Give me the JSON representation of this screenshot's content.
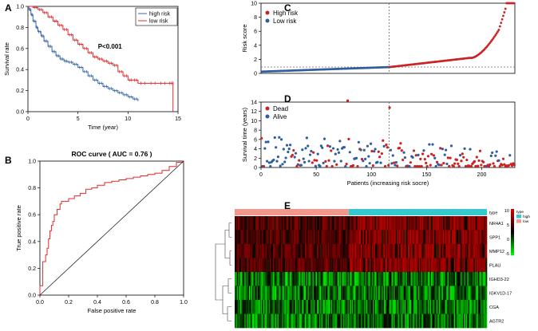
{
  "panel_letters": [
    "A",
    "B",
    "C",
    "D",
    "E"
  ],
  "chart_data": [
    {
      "panel": "A",
      "type": "line",
      "title": "",
      "xlabel": "Time (year)",
      "ylabel": "Survival rate",
      "xlim": [
        0,
        15
      ],
      "ylim": [
        0,
        1
      ],
      "xticks": [
        0,
        5,
        10,
        15
      ],
      "yticks": [
        0.0,
        0.2,
        0.4,
        0.6,
        0.8,
        1.0
      ],
      "annotation": "P<0.001",
      "series": [
        {
          "name": "high risk",
          "color": "#3a67a8",
          "x": [
            0,
            0.1,
            0.3,
            0.5,
            0.8,
            1.0,
            1.3,
            1.6,
            2.0,
            2.4,
            2.8,
            3.2,
            3.6,
            4.0,
            4.5,
            5.0,
            5.5,
            6.0,
            6.5,
            7.0,
            7.5,
            8.0,
            8.5,
            9.0,
            9.5,
            10.0,
            10.5,
            11.0
          ],
          "y": [
            1.0,
            0.97,
            0.92,
            0.86,
            0.8,
            0.76,
            0.72,
            0.67,
            0.62,
            0.57,
            0.53,
            0.5,
            0.48,
            0.47,
            0.45,
            0.42,
            0.38,
            0.34,
            0.3,
            0.27,
            0.24,
            0.22,
            0.2,
            0.18,
            0.16,
            0.14,
            0.12,
            0.1
          ]
        },
        {
          "name": "low risk",
          "color": "#e02a2a",
          "x": [
            0,
            0.5,
            1.0,
            1.5,
            2.0,
            2.5,
            3.0,
            3.5,
            4.0,
            4.5,
            5.0,
            5.5,
            6.0,
            6.5,
            7.0,
            7.5,
            8.0,
            8.5,
            9.0,
            9.5,
            10.0,
            10.5,
            11.0,
            12.0,
            13.0,
            14.0,
            14.5,
            14.5
          ],
          "y": [
            1.0,
            0.99,
            0.97,
            0.94,
            0.9,
            0.86,
            0.82,
            0.78,
            0.73,
            0.68,
            0.64,
            0.6,
            0.56,
            0.52,
            0.5,
            0.48,
            0.46,
            0.44,
            0.38,
            0.34,
            0.3,
            0.3,
            0.27,
            0.27,
            0.27,
            0.27,
            0.27,
            0.0
          ]
        }
      ],
      "legend": [
        "high risk",
        "low risk"
      ],
      "legend_position": "top-right"
    },
    {
      "panel": "B",
      "type": "line",
      "title": "ROC curve ( AUC =  0.76 )",
      "xlabel": "False positive rate",
      "ylabel": "True positive rate",
      "xlim": [
        0,
        1
      ],
      "ylim": [
        0,
        1
      ],
      "xticks": [
        0.0,
        0.2,
        0.4,
        0.6,
        0.8,
        1.0
      ],
      "yticks": [
        0.0,
        0.2,
        0.4,
        0.6,
        0.8,
        1.0
      ],
      "series": [
        {
          "name": "ROC",
          "color": "#e02a2a",
          "x": [
            0,
            0,
            0.02,
            0.02,
            0.04,
            0.05,
            0.06,
            0.07,
            0.08,
            0.09,
            0.1,
            0.12,
            0.14,
            0.15,
            0.18,
            0.2,
            0.24,
            0.28,
            0.32,
            0.36,
            0.4,
            0.45,
            0.5,
            0.55,
            0.6,
            0.65,
            0.7,
            0.75,
            0.8,
            0.85,
            0.9,
            0.95,
            1.0
          ],
          "y": [
            0,
            0.07,
            0.07,
            0.25,
            0.3,
            0.35,
            0.42,
            0.48,
            0.52,
            0.55,
            0.6,
            0.64,
            0.68,
            0.7,
            0.7,
            0.72,
            0.74,
            0.76,
            0.79,
            0.8,
            0.82,
            0.84,
            0.85,
            0.86,
            0.87,
            0.88,
            0.89,
            0.9,
            0.91,
            0.93,
            0.96,
            0.99,
            1.0
          ]
        },
        {
          "name": "reference",
          "color": "#222222",
          "x": [
            0,
            1
          ],
          "y": [
            0,
            1
          ]
        }
      ]
    },
    {
      "panel": "C",
      "type": "scatter",
      "ylabel": "Risk score",
      "xlim": [
        0,
        230
      ],
      "ylim": [
        0,
        10
      ],
      "yticks": [
        0,
        2,
        4,
        6,
        8,
        10
      ],
      "cutoff_index": 116,
      "cutoff_score": 0.9,
      "n_patients": 230,
      "legend": [
        "High risk",
        "Low risk"
      ],
      "series_colors": {
        "High risk": "#cc2222",
        "Low risk": "#2f5e9e"
      }
    },
    {
      "panel": "D",
      "type": "scatter",
      "xlabel": "Patients (increasing risk socre)",
      "ylabel": "Survival time (years)",
      "xlim": [
        0,
        230
      ],
      "ylim": [
        0,
        14
      ],
      "xticks": [
        0,
        50,
        100,
        150,
        200
      ],
      "yticks": [
        0,
        2,
        4,
        6,
        8,
        10,
        12,
        14
      ],
      "cutoff_index": 116,
      "legend": [
        "Dead",
        "Alive"
      ],
      "series_colors": {
        "Dead": "#cc2222",
        "Alive": "#2f5e9e"
      }
    },
    {
      "panel": "E",
      "type": "heatmap",
      "rows": [
        "NR4A1",
        "SPP1",
        "MMP12",
        "PLAU",
        "IGHD3-22",
        "IGKV1D-17",
        "CGA",
        "AGTR2"
      ],
      "n_columns": 230,
      "type_label": "type",
      "groups": [
        "high",
        "low"
      ],
      "group_colors": {
        "high": "#35c8cf",
        "low": "#f2978c"
      },
      "annotation_split": 0.45,
      "colorbar_ticks": [
        10,
        5,
        0,
        -5
      ],
      "colors": {
        "high": "#cc0000",
        "mid": "#000000",
        "low": "#00ee00"
      }
    }
  ]
}
